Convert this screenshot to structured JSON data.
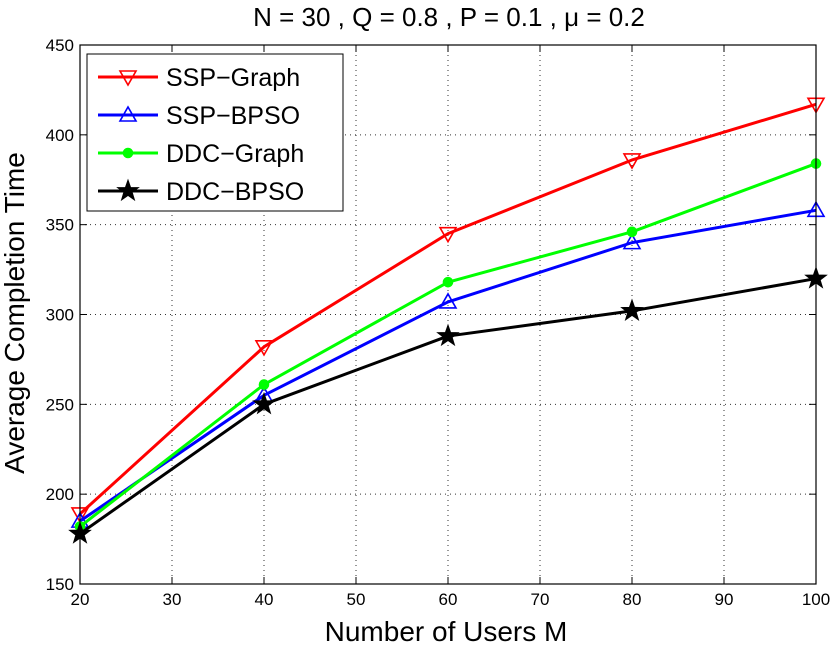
{
  "chart_data": {
    "type": "line",
    "title": "N = 30 , Q = 0.8 , P = 0.1 , μ = 0.2",
    "xlabel": "Number of Users M",
    "ylabel": "Average Completion Time",
    "xlim": [
      20,
      100
    ],
    "ylim": [
      150,
      450
    ],
    "xticks": [
      20,
      30,
      40,
      50,
      60,
      70,
      80,
      90,
      100
    ],
    "yticks": [
      150,
      200,
      250,
      300,
      350,
      400,
      450
    ],
    "grid": true,
    "legend_position": "top-left",
    "x": [
      20,
      40,
      60,
      80,
      100
    ],
    "series": [
      {
        "name": "SSP−Graph",
        "color": "#ff0000",
        "marker": "triangle-down",
        "values": [
          189,
          282,
          345,
          386,
          417
        ]
      },
      {
        "name": "SSP−BPSO",
        "color": "#0000ff",
        "marker": "triangle-up",
        "values": [
          185,
          255,
          307,
          340,
          358
        ]
      },
      {
        "name": "DDC−Graph",
        "color": "#00ff00",
        "marker": "circle",
        "values": [
          182,
          261,
          318,
          346,
          384
        ]
      },
      {
        "name": "DDC−BPSO",
        "color": "#000000",
        "marker": "star",
        "values": [
          178,
          250,
          288,
          302,
          320
        ]
      }
    ]
  }
}
